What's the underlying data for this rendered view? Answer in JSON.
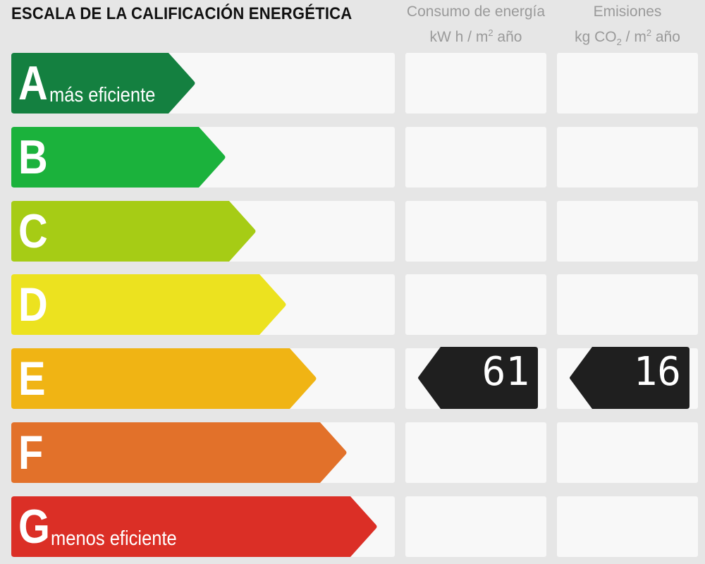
{
  "title": "ESCALA DE LA CALIFICACIÓN ENERGÉTICA",
  "columns": {
    "consumo": {
      "line1": "Consumo de energía",
      "line2a": "kW h / m",
      "line2sup": "2",
      "line2b": " año"
    },
    "emisiones": {
      "line1": "Emisiones",
      "line2a": "kg CO",
      "line2sub": "2",
      "line2b": " / m",
      "line2sup": "2",
      "line2c": " año"
    }
  },
  "ratings": [
    {
      "letter": "A",
      "label": "más eficiente",
      "color": "#148040"
    },
    {
      "letter": "B",
      "label": "",
      "color": "#1bb23c"
    },
    {
      "letter": "C",
      "label": "",
      "color": "#a6cc15"
    },
    {
      "letter": "D",
      "label": "",
      "color": "#ece21f"
    },
    {
      "letter": "E",
      "label": "",
      "color": "#f0b414"
    },
    {
      "letter": "F",
      "label": "",
      "color": "#e2712a"
    },
    {
      "letter": "G",
      "label": "menos eficiente",
      "color": "#db2f26"
    }
  ],
  "current": {
    "rating": "E",
    "consumo": "61",
    "emisiones": "16"
  }
}
